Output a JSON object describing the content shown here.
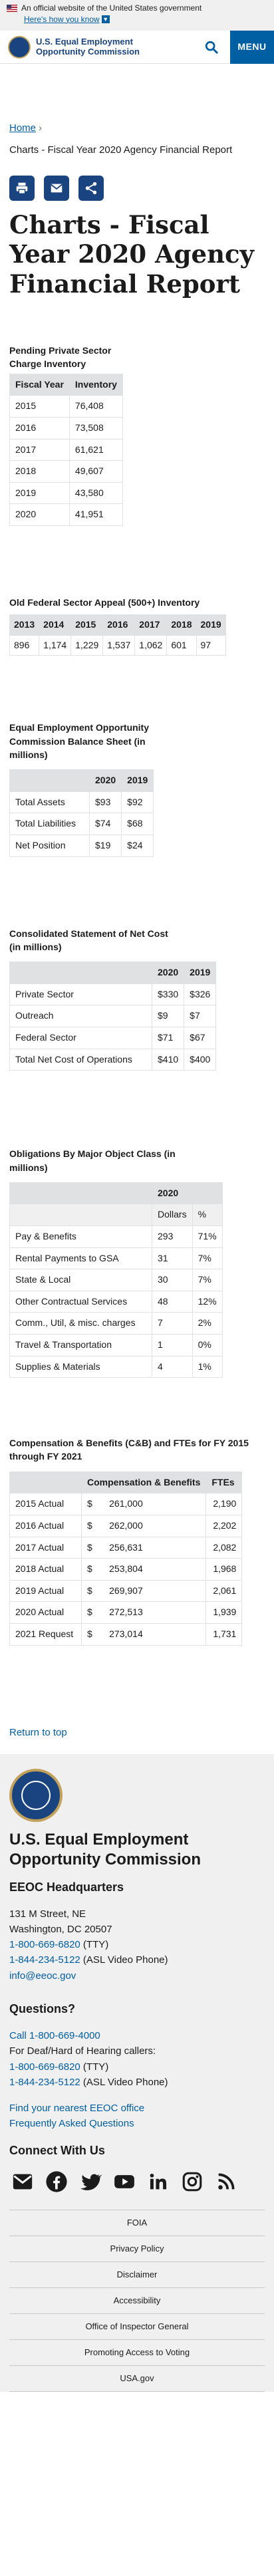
{
  "banner": {
    "official": "An official website of the United States government",
    "howto": "Here's how you know"
  },
  "header": {
    "agency": "U.S. Equal Employment Opportunity Commission",
    "menu": "MENU",
    "search_icon": "search-icon"
  },
  "breadcrumb": {
    "home": "Home",
    "current": "Charts - Fiscal Year 2020 Agency Financial Report"
  },
  "share": {
    "icons": [
      "print-icon",
      "email-icon",
      "share-icon"
    ]
  },
  "title": "Charts - Fiscal Year 2020 Agency Financial Report",
  "pending": {
    "title": "Pending Private Sector Charge Inventory",
    "headers": [
      "Fiscal Year",
      "Inventory"
    ],
    "rows": [
      [
        "2015",
        "76,408"
      ],
      [
        "2016",
        "73,508"
      ],
      [
        "2017",
        "61,621"
      ],
      [
        "2018",
        "49,607"
      ],
      [
        "2019",
        "43,580"
      ],
      [
        "2020",
        "41,951"
      ]
    ]
  },
  "appeal": {
    "title": "Old Federal Sector Appeal (500+) Inventory",
    "headers": [
      "2013",
      "2014",
      "2015",
      "2016",
      "2017",
      "2018",
      "2019"
    ],
    "values": [
      "896",
      "1,174",
      "1,229",
      "1,537",
      "1,062",
      "601",
      "97"
    ]
  },
  "balance": {
    "title": "Equal Employment Opportunity Commission Balance Sheet (in millions)",
    "headers": [
      "",
      "2020",
      "2019"
    ],
    "rows": [
      [
        "Total Assets",
        "$93",
        "$92"
      ],
      [
        "Total Liabilities",
        "$74",
        "$68"
      ],
      [
        "Net Position",
        "$19",
        "$24"
      ]
    ]
  },
  "netcost": {
    "title": "Consolidated Statement of Net Cost (in millions)",
    "headers": [
      "",
      "2020",
      "2019"
    ],
    "rows": [
      [
        "Private Sector",
        "$330",
        "$326"
      ],
      [
        "Outreach",
        "$9",
        "$7"
      ],
      [
        "Federal Sector",
        "$71",
        "$67"
      ],
      [
        "Total Net Cost of Operations",
        "$410",
        "$400"
      ]
    ]
  },
  "obligations": {
    "title": "Obligations By Major Object Class (in millions)",
    "year": "2020",
    "subheaders": [
      "Dollars",
      "%"
    ],
    "rows": [
      [
        "Pay & Benefits",
        "293",
        "71%"
      ],
      [
        "Rental Payments to GSA",
        "31",
        "7%"
      ],
      [
        "State & Local",
        "30",
        "7%"
      ],
      [
        "Other Contractual Services",
        "48",
        "12%"
      ],
      [
        "Comm., Util, & misc. charges",
        "7",
        "2%"
      ],
      [
        "Travel & Transportation",
        "1",
        "0%"
      ],
      [
        "Supplies & Materials",
        "4",
        "1%"
      ]
    ]
  },
  "cb": {
    "title": "Compensation & Benefits (C&B) and FTEs for FY 2015 through FY 2021",
    "headers": [
      "",
      "Compensation & Benefits",
      "FTEs"
    ],
    "rows": [
      [
        "2015 Actual",
        "$",
        "261,000",
        "2,190"
      ],
      [
        "2016 Actual",
        "$",
        "262,000",
        "2,202"
      ],
      [
        "2017 Actual",
        "$",
        "256,631",
        "2,082"
      ],
      [
        "2018 Actual",
        "$",
        "253,804",
        "1,968"
      ],
      [
        "2019 Actual",
        "$",
        "269,907",
        "2,061"
      ],
      [
        "2020 Actual",
        "$",
        "272,513",
        "1,939"
      ],
      [
        "2021 Request",
        "$",
        "273,014",
        "1,731"
      ]
    ]
  },
  "return_top": "Return to top",
  "footer": {
    "org": "U.S. Equal Employment Opportunity Commission",
    "hq_title": "EEOC Headquarters",
    "address1": "131 M Street, NE",
    "address2": "Washington, DC 20507",
    "phone1": "1-800-669-6820",
    "phone1_suffix": " (TTY)",
    "phone2": "1-844-234-5122",
    "phone2_suffix": " (ASL Video Phone)",
    "email": "info@eeoc.gov",
    "questions_title": "Questions?",
    "call": "Call 1-800-669-4000",
    "deaf_line": "For Deaf/Hard of Hearing callers:",
    "q_phone1": "1-800-669-6820",
    "q_phone1_suffix": " (TTY)",
    "q_phone2": "1-844-234-5122",
    "q_phone2_suffix": " (ASL Video Phone)",
    "find_office": "Find your nearest EEOC office",
    "faq": "Frequently Asked Questions",
    "connect_title": "Connect With Us",
    "social": [
      "email-icon",
      "facebook-icon",
      "twitter-icon",
      "youtube-icon",
      "linkedin-icon",
      "instagram-icon",
      "rss-icon"
    ],
    "links": [
      "FOIA",
      "Privacy Policy",
      "Disclaimer",
      "Accessibility",
      "Office of Inspector General",
      "Promoting Access to Voting",
      "USA.gov"
    ]
  }
}
